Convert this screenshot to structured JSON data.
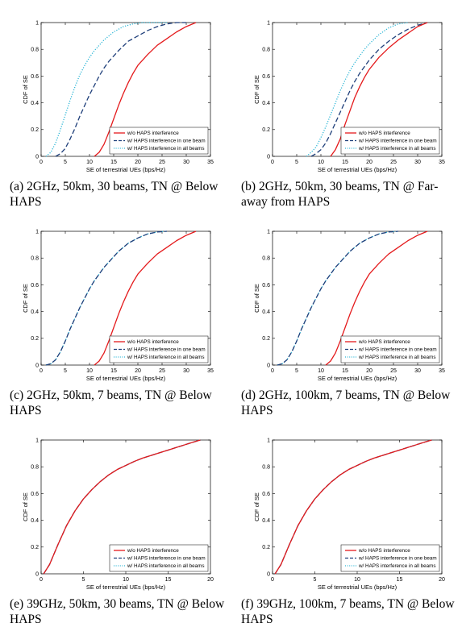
{
  "colors": {
    "red": "#e41a1c",
    "navy": "#1f3f7a",
    "cyan": "#2bb6d6"
  },
  "chart_data": [
    {
      "type": "line",
      "caption": "(a) 2GHz, 50km, 30 beams, TN @ Below HAPS",
      "xlabel": "SE of terrestrial UEs (bps/Hz)",
      "ylabel": "CDF of SE",
      "xlim": [
        0,
        35
      ],
      "ylim": [
        0,
        1
      ],
      "xticks": [
        "0",
        "5",
        "10",
        "15",
        "20",
        "25",
        "30",
        "35"
      ],
      "yticks": [
        "0",
        "0.2",
        "0.4",
        "0.6",
        "0.8",
        "1"
      ],
      "legend": "bottom-right",
      "series": [
        {
          "name": "w/o HAPS interference",
          "style": "solid",
          "color": "#e41a1c",
          "x": [
            11,
            12,
            13,
            14,
            15,
            16,
            17,
            18,
            19,
            20,
            22,
            24,
            26,
            28,
            30,
            32
          ],
          "y": [
            0,
            0.03,
            0.09,
            0.18,
            0.28,
            0.38,
            0.47,
            0.55,
            0.62,
            0.68,
            0.76,
            0.83,
            0.88,
            0.93,
            0.97,
            1
          ]
        },
        {
          "name": "w/ HAPS interference in one beam",
          "style": "dashed",
          "color": "#1f3f7a",
          "x": [
            3,
            4,
            5,
            6,
            7,
            8,
            9,
            10,
            11,
            12,
            13,
            14,
            16,
            18,
            20,
            22,
            24,
            26,
            28,
            30
          ],
          "y": [
            0,
            0.02,
            0.06,
            0.13,
            0.21,
            0.3,
            0.38,
            0.46,
            0.53,
            0.6,
            0.66,
            0.71,
            0.79,
            0.86,
            0.9,
            0.94,
            0.97,
            0.99,
            1,
            1
          ]
        },
        {
          "name": "w/ HAPS interference in all beams",
          "style": "dotted",
          "color": "#2bb6d6",
          "x": [
            1,
            2,
            3,
            4,
            5,
            6,
            7,
            8,
            9,
            10,
            11,
            12,
            13,
            14,
            15,
            16,
            17,
            18,
            19,
            20,
            21,
            22,
            23,
            24,
            25,
            26
          ],
          "y": [
            0,
            0.03,
            0.1,
            0.2,
            0.31,
            0.42,
            0.52,
            0.61,
            0.68,
            0.74,
            0.79,
            0.83,
            0.87,
            0.9,
            0.93,
            0.95,
            0.97,
            0.98,
            0.99,
            0.995,
            1,
            1,
            1,
            1,
            1,
            1
          ]
        }
      ]
    },
    {
      "type": "line",
      "caption": "(b) 2GHz, 50km, 30 beams, TN @ Far-away from HAPS",
      "xlabel": "SE of terrestrial UEs (bps/Hz)",
      "ylabel": "CDF of SE",
      "xlim": [
        0,
        35
      ],
      "ylim": [
        0,
        1
      ],
      "xticks": [
        "0",
        "5",
        "10",
        "15",
        "20",
        "25",
        "30",
        "35"
      ],
      "yticks": [
        "0",
        "0.2",
        "0.4",
        "0.6",
        "0.8",
        "1"
      ],
      "legend": "bottom-right",
      "series": [
        {
          "name": "w/o HAPS interference",
          "style": "solid",
          "color": "#e41a1c",
          "x": [
            12,
            13,
            14,
            15,
            16,
            17,
            18,
            19,
            20,
            22,
            24,
            26,
            28,
            30,
            32
          ],
          "y": [
            0,
            0.05,
            0.13,
            0.24,
            0.34,
            0.44,
            0.52,
            0.59,
            0.65,
            0.74,
            0.81,
            0.87,
            0.92,
            0.97,
            1
          ]
        },
        {
          "name": "w/ HAPS interference in one beam",
          "style": "dashed",
          "color": "#1f3f7a",
          "x": [
            8,
            9,
            10,
            11,
            12,
            13,
            14,
            15,
            16,
            17,
            18,
            20,
            22,
            24,
            26,
            28,
            30,
            32
          ],
          "y": [
            0,
            0.02,
            0.05,
            0.1,
            0.17,
            0.25,
            0.33,
            0.41,
            0.49,
            0.56,
            0.62,
            0.72,
            0.8,
            0.86,
            0.91,
            0.95,
            0.98,
            1
          ]
        },
        {
          "name": "w/ HAPS interference in all beams",
          "style": "dotted",
          "color": "#2bb6d6",
          "x": [
            7,
            8,
            9,
            10,
            11,
            12,
            13,
            14,
            15,
            16,
            17,
            18,
            19,
            20,
            22,
            24,
            26,
            28
          ],
          "y": [
            0,
            0.03,
            0.07,
            0.14,
            0.22,
            0.31,
            0.4,
            0.49,
            0.57,
            0.64,
            0.7,
            0.75,
            0.8,
            0.84,
            0.91,
            0.96,
            0.99,
            1
          ]
        }
      ]
    },
    {
      "type": "line",
      "caption": "(c) 2GHz, 50km, 7 beams, TN @ Below HAPS",
      "xlabel": "SE of terrestrial UEs (bps/Hz)",
      "ylabel": "CDF of SE",
      "xlim": [
        0,
        35
      ],
      "ylim": [
        0,
        1
      ],
      "xticks": [
        "0",
        "5",
        "10",
        "15",
        "20",
        "25",
        "30",
        "35"
      ],
      "yticks": [
        "0",
        "0.2",
        "0.4",
        "0.6",
        "0.8",
        "1"
      ],
      "legend": "bottom-right",
      "series": [
        {
          "name": "w/o HAPS interference",
          "style": "solid",
          "color": "#e41a1c",
          "x": [
            11,
            12,
            13,
            14,
            15,
            16,
            17,
            18,
            19,
            20,
            22,
            24,
            26,
            28,
            30,
            32
          ],
          "y": [
            0,
            0.03,
            0.09,
            0.18,
            0.28,
            0.38,
            0.47,
            0.55,
            0.62,
            0.68,
            0.76,
            0.83,
            0.88,
            0.93,
            0.97,
            1
          ]
        },
        {
          "name": "w/ HAPS interference in one beam",
          "style": "dashed",
          "color": "#1f3f7a",
          "x": [
            1,
            2,
            3,
            4,
            5,
            6,
            7,
            8,
            9,
            10,
            11,
            12,
            13,
            14,
            15,
            16,
            17,
            18,
            19,
            20,
            22,
            24,
            26
          ],
          "y": [
            0,
            0.01,
            0.04,
            0.1,
            0.18,
            0.27,
            0.35,
            0.43,
            0.5,
            0.57,
            0.63,
            0.68,
            0.73,
            0.77,
            0.81,
            0.85,
            0.88,
            0.91,
            0.93,
            0.95,
            0.98,
            0.995,
            1
          ]
        },
        {
          "name": "w/ HAPS interference in all beams",
          "style": "dotted",
          "color": "#2bb6d6",
          "x": [
            1,
            2,
            3,
            4,
            5,
            6,
            7,
            8,
            9,
            10,
            11,
            12,
            13,
            14,
            15,
            16,
            17,
            18,
            19,
            20,
            22,
            24,
            26
          ],
          "y": [
            0,
            0.01,
            0.04,
            0.1,
            0.18,
            0.27,
            0.35,
            0.43,
            0.5,
            0.57,
            0.63,
            0.68,
            0.73,
            0.77,
            0.81,
            0.85,
            0.88,
            0.91,
            0.93,
            0.95,
            0.98,
            0.995,
            1
          ]
        }
      ]
    },
    {
      "type": "line",
      "caption": "(d) 2GHz, 100km, 7 beams, TN @ Below HAPS",
      "xlabel": "SE of terrestrial UEs (bps/Hz)",
      "ylabel": "CDF of SE",
      "xlim": [
        0,
        35
      ],
      "ylim": [
        0,
        1
      ],
      "xticks": [
        "0",
        "5",
        "10",
        "15",
        "20",
        "25",
        "30",
        "35"
      ],
      "yticks": [
        "0",
        "0.2",
        "0.4",
        "0.6",
        "0.8",
        "1"
      ],
      "legend": "bottom-right",
      "series": [
        {
          "name": "w/o HAPS interference",
          "style": "solid",
          "color": "#e41a1c",
          "x": [
            11,
            12,
            13,
            14,
            15,
            16,
            17,
            18,
            19,
            20,
            22,
            24,
            26,
            28,
            30,
            32
          ],
          "y": [
            0,
            0.03,
            0.09,
            0.18,
            0.28,
            0.38,
            0.47,
            0.55,
            0.62,
            0.68,
            0.76,
            0.83,
            0.88,
            0.93,
            0.97,
            1
          ]
        },
        {
          "name": "w/ HAPS interference in one beam",
          "style": "dashed",
          "color": "#1f3f7a",
          "x": [
            1,
            2,
            3,
            4,
            5,
            6,
            7,
            8,
            9,
            10,
            11,
            12,
            13,
            14,
            15,
            16,
            17,
            18,
            19,
            20,
            22,
            24,
            26
          ],
          "y": [
            0,
            0.01,
            0.04,
            0.1,
            0.18,
            0.27,
            0.35,
            0.43,
            0.5,
            0.57,
            0.63,
            0.68,
            0.73,
            0.77,
            0.81,
            0.85,
            0.88,
            0.91,
            0.93,
            0.95,
            0.98,
            0.995,
            1
          ]
        },
        {
          "name": "w/ HAPS interference in all beams",
          "style": "dotted",
          "color": "#2bb6d6",
          "x": [
            1,
            2,
            3,
            4,
            5,
            6,
            7,
            8,
            9,
            10,
            11,
            12,
            13,
            14,
            15,
            16,
            17,
            18,
            19,
            20,
            22,
            24,
            26
          ],
          "y": [
            0,
            0.01,
            0.04,
            0.1,
            0.18,
            0.27,
            0.35,
            0.43,
            0.5,
            0.57,
            0.63,
            0.68,
            0.73,
            0.77,
            0.81,
            0.85,
            0.88,
            0.91,
            0.93,
            0.95,
            0.98,
            0.995,
            1
          ]
        }
      ]
    },
    {
      "type": "line",
      "caption": "(e) 39GHz, 50km, 30 beams, TN @ Below HAPS",
      "xlabel": "SE of terrestrial UEs (bps/Hz)",
      "ylabel": "CDF of SE",
      "xlim": [
        0,
        20
      ],
      "ylim": [
        0,
        1
      ],
      "xticks": [
        "0",
        "5",
        "10",
        "15",
        "20"
      ],
      "yticks": [
        "0",
        "0.2",
        "0.4",
        "0.6",
        "0.8",
        "1"
      ],
      "legend": "bottom-right",
      "series": [
        {
          "name": "w/o HAPS interference",
          "style": "solid",
          "color": "#e41a1c",
          "x": [
            0.3,
            1,
            2,
            3,
            4,
            5,
            6,
            7,
            8,
            9,
            10,
            11,
            12,
            13,
            14,
            15,
            16,
            17,
            18,
            18.8
          ],
          "y": [
            0,
            0.07,
            0.22,
            0.36,
            0.47,
            0.56,
            0.63,
            0.69,
            0.74,
            0.78,
            0.81,
            0.84,
            0.865,
            0.885,
            0.905,
            0.925,
            0.945,
            0.965,
            0.985,
            1
          ]
        },
        {
          "name": "w/ HAPS interference in one beam",
          "style": "dashed",
          "color": "#1f3f7a",
          "x": [
            0.3,
            1,
            2,
            3,
            4,
            5,
            6,
            7,
            8,
            9,
            10,
            11,
            12,
            13,
            14,
            15,
            16,
            17,
            18,
            18.8
          ],
          "y": [
            0,
            0.07,
            0.22,
            0.36,
            0.47,
            0.56,
            0.63,
            0.69,
            0.74,
            0.78,
            0.81,
            0.84,
            0.865,
            0.885,
            0.905,
            0.925,
            0.945,
            0.965,
            0.985,
            1
          ]
        },
        {
          "name": "w/ HAPS interference in all beams",
          "style": "dotted",
          "color": "#2bb6d6",
          "x": [
            0.3,
            1,
            2,
            3,
            4,
            5,
            6,
            7,
            8,
            9,
            10,
            11,
            12,
            13,
            14,
            15,
            16,
            17,
            18,
            18.8
          ],
          "y": [
            0,
            0.07,
            0.22,
            0.36,
            0.47,
            0.56,
            0.63,
            0.69,
            0.74,
            0.78,
            0.81,
            0.84,
            0.865,
            0.885,
            0.905,
            0.925,
            0.945,
            0.965,
            0.985,
            1
          ]
        }
      ]
    },
    {
      "type": "line",
      "caption": "(f) 39GHz, 100km, 7 beams, TN @ Below HAPS",
      "xlabel": "SE of terrestrial UEs (bps/Hz)",
      "ylabel": "CDF of SE",
      "xlim": [
        0,
        20
      ],
      "ylim": [
        0,
        1
      ],
      "xticks": [
        "0",
        "5",
        "10",
        "15",
        "20"
      ],
      "yticks": [
        "0",
        "0.2",
        "0.4",
        "0.6",
        "0.8",
        "1"
      ],
      "legend": "bottom-right",
      "series": [
        {
          "name": "w/o HAPS interference",
          "style": "solid",
          "color": "#e41a1c",
          "x": [
            0.3,
            1,
            2,
            3,
            4,
            5,
            6,
            7,
            8,
            9,
            10,
            11,
            12,
            13,
            14,
            15,
            16,
            17,
            18,
            18.8
          ],
          "y": [
            0,
            0.07,
            0.22,
            0.36,
            0.47,
            0.56,
            0.63,
            0.69,
            0.74,
            0.78,
            0.81,
            0.84,
            0.865,
            0.885,
            0.905,
            0.925,
            0.945,
            0.965,
            0.985,
            1
          ]
        },
        {
          "name": "w/ HAPS interference in one beam",
          "style": "dashed",
          "color": "#1f3f7a",
          "x": [
            0.3,
            1,
            2,
            3,
            4,
            5,
            6,
            7,
            8,
            9,
            10,
            11,
            12,
            13,
            14,
            15,
            16,
            17,
            18,
            18.8
          ],
          "y": [
            0,
            0.07,
            0.22,
            0.36,
            0.47,
            0.56,
            0.63,
            0.69,
            0.74,
            0.78,
            0.81,
            0.84,
            0.865,
            0.885,
            0.905,
            0.925,
            0.945,
            0.965,
            0.985,
            1
          ]
        },
        {
          "name": "w/ HAPS interference in all beams",
          "style": "dotted",
          "color": "#2bb6d6",
          "x": [
            0.3,
            1,
            2,
            3,
            4,
            5,
            6,
            7,
            8,
            9,
            10,
            11,
            12,
            13,
            14,
            15,
            16,
            17,
            18,
            18.8
          ],
          "y": [
            0,
            0.07,
            0.22,
            0.36,
            0.47,
            0.56,
            0.63,
            0.69,
            0.74,
            0.78,
            0.81,
            0.84,
            0.865,
            0.885,
            0.905,
            0.925,
            0.945,
            0.965,
            0.985,
            1
          ]
        }
      ]
    }
  ]
}
